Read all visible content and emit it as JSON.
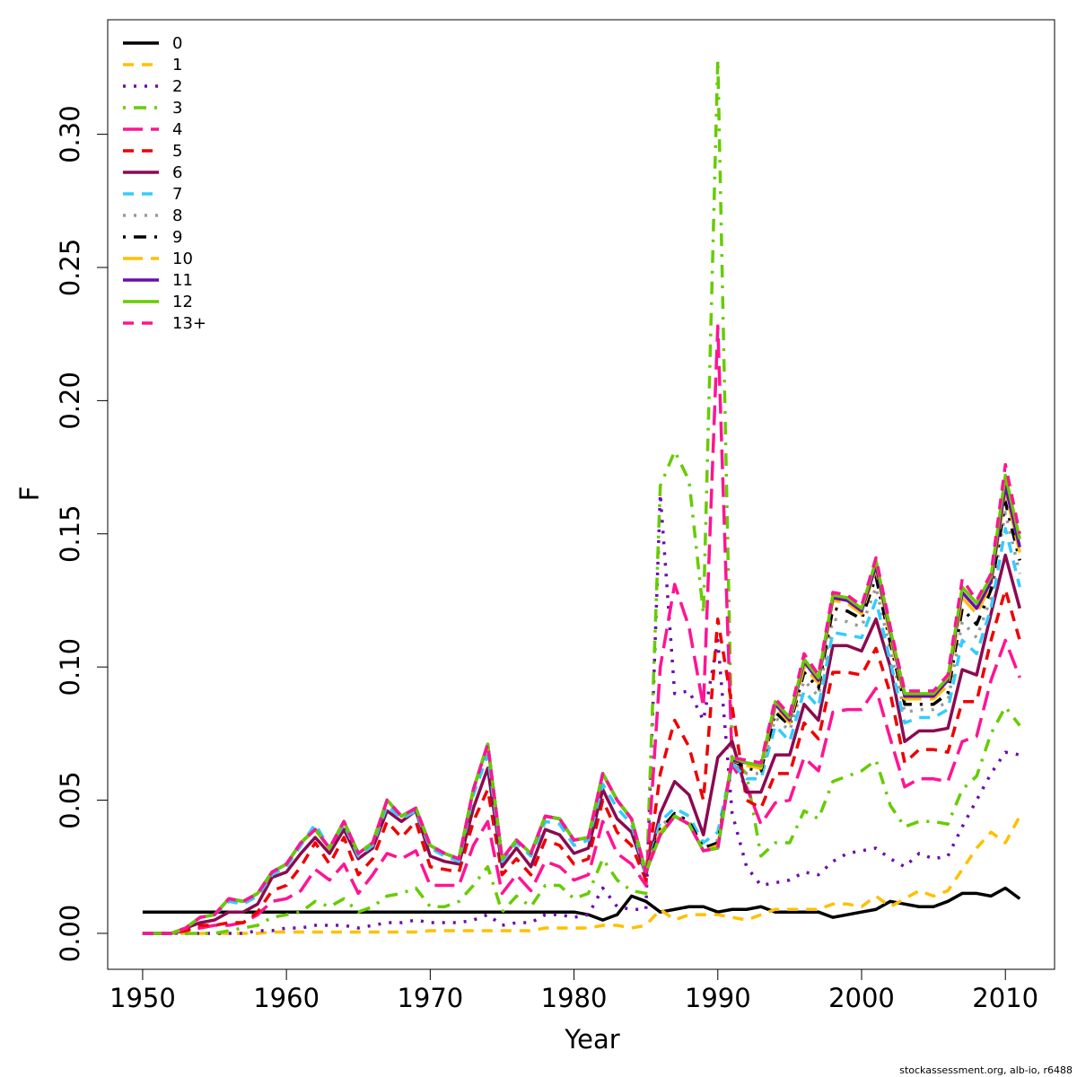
{
  "chart_data": {
    "type": "line",
    "xlabel": "Year",
    "ylabel": "F",
    "footer": "stockassessment.org, alb-io, r6488",
    "x": [
      1950,
      1951,
      1952,
      1953,
      1954,
      1955,
      1956,
      1957,
      1958,
      1959,
      1960,
      1961,
      1962,
      1963,
      1964,
      1965,
      1966,
      1967,
      1968,
      1969,
      1970,
      1971,
      1972,
      1973,
      1974,
      1975,
      1976,
      1977,
      1978,
      1979,
      1980,
      1981,
      1982,
      1983,
      1984,
      1985,
      1986,
      1987,
      1988,
      1989,
      1990,
      1991,
      1992,
      1993,
      1994,
      1995,
      1996,
      1997,
      1998,
      1999,
      2000,
      2001,
      2002,
      2003,
      2004,
      2005,
      2006,
      2007,
      2008,
      2009,
      2010,
      2011
    ],
    "xlim": [
      1947.57,
      2013.42
    ],
    "xticks": [
      1950,
      1960,
      1970,
      1980,
      1990,
      2000,
      2010
    ],
    "ylim": [
      -0.0135,
      0.343
    ],
    "yticks": [
      {
        "value": 0,
        "label": "0.00"
      },
      {
        "value": 0.05,
        "label": "0.05"
      },
      {
        "value": 0.1,
        "label": "0.10"
      },
      {
        "value": 0.15,
        "label": "0.15"
      },
      {
        "value": 0.2,
        "label": "0.20"
      },
      {
        "value": 0.25,
        "label": "0.25"
      },
      {
        "value": 0.3,
        "label": "0.30"
      }
    ],
    "legend": "top-left",
    "series": [
      {
        "name": "0",
        "color": "#000000",
        "linestyle": "solid",
        "values": [
          0.008,
          0.008,
          0.008,
          0.008,
          0.008,
          0.008,
          0.008,
          0.008,
          0.008,
          0.008,
          0.008,
          0.008,
          0.008,
          0.008,
          0.008,
          0.008,
          0.008,
          0.008,
          0.008,
          0.008,
          0.008,
          0.008,
          0.008,
          0.008,
          0.008,
          0.008,
          0.008,
          0.008,
          0.008,
          0.008,
          0.008,
          0.007,
          0.005,
          0.007,
          0.014,
          0.012,
          0.008,
          0.009,
          0.01,
          0.01,
          0.008,
          0.009,
          0.009,
          0.01,
          0.008,
          0.008,
          0.008,
          0.008,
          0.006,
          0.007,
          0.008,
          0.009,
          0.012,
          0.011,
          0.01,
          0.01,
          0.012,
          0.015,
          0.015,
          0.014,
          0.017,
          0.013
        ]
      },
      {
        "name": "1",
        "color": "#FFC000",
        "linestyle": "dashed",
        "values": [
          0,
          0,
          0,
          0,
          0,
          0,
          0,
          0,
          0,
          0.0005,
          0.0005,
          0.0005,
          0.0005,
          0.0005,
          0.0005,
          0.0005,
          0.0005,
          0.0005,
          0.0005,
          0.0005,
          0.001,
          0.001,
          0.001,
          0.001,
          0.001,
          0.001,
          0.001,
          0.001,
          0.002,
          0.002,
          0.002,
          0.002,
          0.003,
          0.003,
          0.002,
          0.003,
          0.009,
          0.005,
          0.007,
          0.007,
          0.007,
          0.006,
          0.005,
          0.007,
          0.009,
          0.009,
          0.009,
          0.009,
          0.011,
          0.011,
          0.01,
          0.014,
          0.01,
          0.013,
          0.016,
          0.014,
          0.016,
          0.024,
          0.032,
          0.038,
          0.034,
          0.044
        ]
      },
      {
        "name": "2",
        "color": "#6A0DAD",
        "linestyle": "dotted",
        "values": [
          0,
          0,
          0,
          0,
          0,
          0,
          0,
          0,
          0.001,
          0.001,
          0.002,
          0.002,
          0.003,
          0.003,
          0.003,
          0.002,
          0.003,
          0.004,
          0.004,
          0.005,
          0.004,
          0.004,
          0.004,
          0.005,
          0.007,
          0.003,
          0.004,
          0.004,
          0.007,
          0.007,
          0.006,
          0.007,
          0.017,
          0.01,
          0.009,
          0.009,
          0.165,
          0.09,
          0.091,
          0.08,
          0.11,
          0.045,
          0.025,
          0.018,
          0.019,
          0.02,
          0.023,
          0.022,
          0.027,
          0.03,
          0.031,
          0.032,
          0.028,
          0.025,
          0.03,
          0.028,
          0.029,
          0.04,
          0.05,
          0.06,
          0.068,
          0.067
        ]
      },
      {
        "name": "3",
        "color": "#66CC00",
        "linestyle": "dotdash",
        "values": [
          0,
          0,
          0,
          0,
          0,
          0,
          0.001,
          0.002,
          0.003,
          0.006,
          0.007,
          0.008,
          0.012,
          0.01,
          0.013,
          0.008,
          0.01,
          0.014,
          0.015,
          0.017,
          0.01,
          0.01,
          0.012,
          0.018,
          0.025,
          0.008,
          0.014,
          0.01,
          0.018,
          0.018,
          0.013,
          0.015,
          0.028,
          0.02,
          0.016,
          0.015,
          0.168,
          0.181,
          0.17,
          0.12,
          0.328,
          0.065,
          0.06,
          0.029,
          0.034,
          0.034,
          0.046,
          0.043,
          0.057,
          0.059,
          0.061,
          0.065,
          0.048,
          0.04,
          0.042,
          0.042,
          0.041,
          0.054,
          0.059,
          0.075,
          0.085,
          0.078
        ]
      },
      {
        "name": "4",
        "color": "#FF1493",
        "linestyle": "longdash",
        "values": [
          0,
          0,
          0,
          0.001,
          0.002,
          0.003,
          0.003,
          0.004,
          0.007,
          0.012,
          0.013,
          0.016,
          0.024,
          0.02,
          0.026,
          0.015,
          0.022,
          0.03,
          0.028,
          0.031,
          0.018,
          0.018,
          0.018,
          0.033,
          0.042,
          0.015,
          0.022,
          0.016,
          0.027,
          0.025,
          0.02,
          0.022,
          0.042,
          0.03,
          0.026,
          0.018,
          0.1,
          0.131,
          0.115,
          0.085,
          0.228,
          0.063,
          0.055,
          0.041,
          0.049,
          0.05,
          0.066,
          0.061,
          0.083,
          0.084,
          0.084,
          0.092,
          0.073,
          0.055,
          0.058,
          0.058,
          0.057,
          0.072,
          0.074,
          0.095,
          0.11,
          0.096
        ]
      },
      {
        "name": "5",
        "color": "#EE0000",
        "linestyle": "dashed",
        "values": [
          0,
          0,
          0,
          0.001,
          0.003,
          0.003,
          0.004,
          0.004,
          0.008,
          0.016,
          0.018,
          0.025,
          0.034,
          0.026,
          0.036,
          0.022,
          0.028,
          0.042,
          0.036,
          0.042,
          0.025,
          0.024,
          0.023,
          0.042,
          0.054,
          0.022,
          0.028,
          0.022,
          0.035,
          0.033,
          0.026,
          0.028,
          0.05,
          0.038,
          0.033,
          0.02,
          0.06,
          0.08,
          0.07,
          0.05,
          0.118,
          0.085,
          0.05,
          0.047,
          0.06,
          0.06,
          0.079,
          0.073,
          0.098,
          0.098,
          0.097,
          0.107,
          0.09,
          0.064,
          0.069,
          0.069,
          0.068,
          0.087,
          0.087,
          0.11,
          0.129,
          0.11
        ]
      },
      {
        "name": "6",
        "color": "#8B0A50",
        "linestyle": "solid",
        "values": [
          0,
          0,
          0,
          0.002,
          0.004,
          0.005,
          0.008,
          0.008,
          0.011,
          0.021,
          0.023,
          0.03,
          0.036,
          0.03,
          0.039,
          0.028,
          0.032,
          0.046,
          0.042,
          0.046,
          0.029,
          0.027,
          0.026,
          0.047,
          0.062,
          0.025,
          0.032,
          0.025,
          0.039,
          0.037,
          0.03,
          0.032,
          0.054,
          0.043,
          0.038,
          0.022,
          0.045,
          0.057,
          0.052,
          0.037,
          0.066,
          0.072,
          0.053,
          0.053,
          0.067,
          0.067,
          0.086,
          0.08,
          0.108,
          0.108,
          0.106,
          0.118,
          0.1,
          0.072,
          0.076,
          0.076,
          0.077,
          0.099,
          0.097,
          0.12,
          0.142,
          0.122
        ]
      },
      {
        "name": "7",
        "color": "#33CCFF",
        "linestyle": "dashed",
        "values": [
          0,
          0,
          0,
          0.002,
          0.006,
          0.007,
          0.012,
          0.011,
          0.014,
          0.022,
          0.025,
          0.033,
          0.041,
          0.032,
          0.041,
          0.029,
          0.033,
          0.048,
          0.043,
          0.046,
          0.032,
          0.029,
          0.027,
          0.052,
          0.067,
          0.027,
          0.034,
          0.029,
          0.042,
          0.041,
          0.033,
          0.035,
          0.056,
          0.047,
          0.041,
          0.022,
          0.042,
          0.047,
          0.044,
          0.034,
          0.038,
          0.064,
          0.058,
          0.058,
          0.078,
          0.072,
          0.091,
          0.085,
          0.113,
          0.112,
          0.111,
          0.125,
          0.102,
          0.079,
          0.081,
          0.081,
          0.084,
          0.11,
          0.105,
          0.122,
          0.152,
          0.13
        ]
      },
      {
        "name": "8",
        "color": "#999999",
        "linestyle": "dotted",
        "values": [
          0,
          0,
          0,
          0.002,
          0.006,
          0.007,
          0.013,
          0.012,
          0.015,
          0.023,
          0.026,
          0.034,
          0.039,
          0.032,
          0.042,
          0.03,
          0.034,
          0.05,
          0.044,
          0.047,
          0.033,
          0.03,
          0.028,
          0.054,
          0.071,
          0.028,
          0.035,
          0.03,
          0.044,
          0.043,
          0.035,
          0.036,
          0.06,
          0.05,
          0.043,
          0.023,
          0.04,
          0.045,
          0.042,
          0.032,
          0.035,
          0.064,
          0.06,
          0.06,
          0.081,
          0.076,
          0.095,
          0.089,
          0.118,
          0.117,
          0.115,
          0.13,
          0.106,
          0.083,
          0.084,
          0.084,
          0.087,
          0.117,
          0.111,
          0.126,
          0.158,
          0.135
        ]
      },
      {
        "name": "9",
        "color": "#000000",
        "linestyle": "dotdash",
        "values": [
          0,
          0,
          0,
          0.002,
          0.006,
          0.007,
          0.013,
          0.012,
          0.015,
          0.023,
          0.026,
          0.034,
          0.039,
          0.032,
          0.042,
          0.03,
          0.034,
          0.05,
          0.044,
          0.047,
          0.033,
          0.03,
          0.028,
          0.054,
          0.071,
          0.028,
          0.035,
          0.03,
          0.044,
          0.043,
          0.035,
          0.036,
          0.06,
          0.05,
          0.043,
          0.023,
          0.039,
          0.045,
          0.042,
          0.032,
          0.034,
          0.065,
          0.062,
          0.061,
          0.083,
          0.078,
          0.098,
          0.092,
          0.122,
          0.121,
          0.118,
          0.134,
          0.109,
          0.086,
          0.086,
          0.086,
          0.09,
          0.122,
          0.116,
          0.129,
          0.162,
          0.14
        ]
      },
      {
        "name": "10",
        "color": "#FFC000",
        "linestyle": "longdash",
        "values": [
          0,
          0,
          0,
          0.002,
          0.006,
          0.007,
          0.013,
          0.012,
          0.015,
          0.023,
          0.026,
          0.034,
          0.039,
          0.032,
          0.042,
          0.03,
          0.034,
          0.05,
          0.044,
          0.047,
          0.033,
          0.03,
          0.028,
          0.054,
          0.071,
          0.028,
          0.035,
          0.03,
          0.044,
          0.043,
          0.035,
          0.036,
          0.06,
          0.05,
          0.043,
          0.023,
          0.038,
          0.044,
          0.041,
          0.031,
          0.033,
          0.065,
          0.063,
          0.062,
          0.085,
          0.079,
          0.1,
          0.094,
          0.125,
          0.124,
          0.12,
          0.137,
          0.111,
          0.088,
          0.088,
          0.088,
          0.093,
          0.126,
          0.12,
          0.131,
          0.166,
          0.143
        ]
      },
      {
        "name": "11",
        "color": "#6A0DAD",
        "linestyle": "solid",
        "values": [
          0,
          0,
          0,
          0.002,
          0.006,
          0.007,
          0.013,
          0.012,
          0.015,
          0.023,
          0.026,
          0.034,
          0.039,
          0.032,
          0.042,
          0.03,
          0.034,
          0.05,
          0.044,
          0.047,
          0.033,
          0.03,
          0.028,
          0.054,
          0.071,
          0.028,
          0.035,
          0.03,
          0.044,
          0.043,
          0.035,
          0.036,
          0.06,
          0.05,
          0.043,
          0.023,
          0.037,
          0.044,
          0.041,
          0.031,
          0.032,
          0.065,
          0.064,
          0.063,
          0.086,
          0.08,
          0.102,
          0.095,
          0.126,
          0.125,
          0.121,
          0.138,
          0.113,
          0.089,
          0.089,
          0.089,
          0.095,
          0.128,
          0.122,
          0.132,
          0.168,
          0.145
        ]
      },
      {
        "name": "12",
        "color": "#66CC00",
        "linestyle": "solid",
        "values": [
          0,
          0,
          0,
          0.002,
          0.006,
          0.007,
          0.013,
          0.012,
          0.015,
          0.023,
          0.026,
          0.034,
          0.039,
          0.032,
          0.042,
          0.03,
          0.034,
          0.05,
          0.044,
          0.047,
          0.033,
          0.03,
          0.028,
          0.054,
          0.071,
          0.028,
          0.035,
          0.03,
          0.044,
          0.043,
          0.035,
          0.036,
          0.06,
          0.05,
          0.043,
          0.023,
          0.037,
          0.044,
          0.041,
          0.031,
          0.032,
          0.066,
          0.064,
          0.063,
          0.087,
          0.081,
          0.103,
          0.096,
          0.127,
          0.126,
          0.122,
          0.14,
          0.114,
          0.09,
          0.09,
          0.09,
          0.096,
          0.13,
          0.124,
          0.134,
          0.172,
          0.148
        ]
      },
      {
        "name": "13+",
        "color": "#FF1493",
        "linestyle": "dashed",
        "values": [
          0,
          0,
          0,
          0.002,
          0.006,
          0.007,
          0.013,
          0.012,
          0.015,
          0.023,
          0.026,
          0.034,
          0.039,
          0.032,
          0.042,
          0.03,
          0.034,
          0.05,
          0.044,
          0.047,
          0.033,
          0.03,
          0.028,
          0.054,
          0.071,
          0.028,
          0.035,
          0.03,
          0.044,
          0.043,
          0.035,
          0.036,
          0.06,
          0.05,
          0.043,
          0.023,
          0.037,
          0.044,
          0.041,
          0.031,
          0.032,
          0.066,
          0.065,
          0.064,
          0.088,
          0.082,
          0.105,
          0.097,
          0.128,
          0.127,
          0.123,
          0.141,
          0.115,
          0.091,
          0.091,
          0.091,
          0.097,
          0.133,
          0.125,
          0.135,
          0.176,
          0.15
        ]
      }
    ]
  }
}
